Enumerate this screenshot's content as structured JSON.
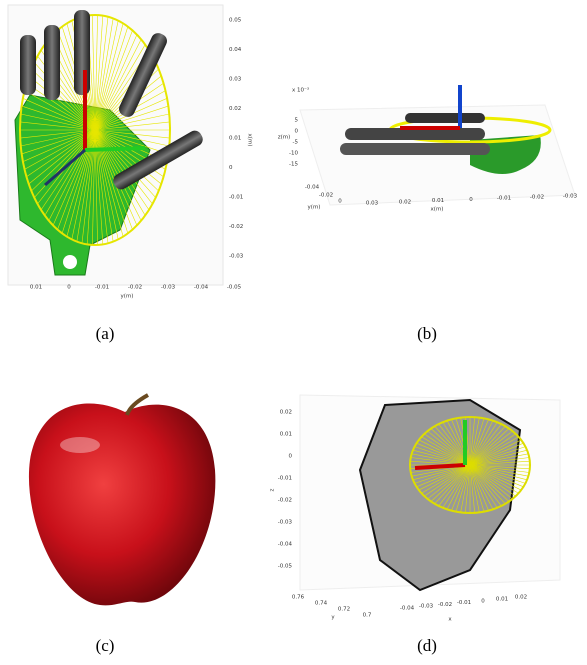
{
  "panels": [
    {
      "label": "(a)",
      "x_axis": {
        "label": "y(m)",
        "ticks": [
          "0.01",
          "0",
          "-0.01",
          "-0.02",
          "-0.03",
          "-0.04",
          "-0.05"
        ]
      },
      "y_axis": {
        "label": "x(m)",
        "ticks": [
          "0.05",
          "0.04",
          "0.03",
          "0.02",
          "0.01",
          "0",
          "-0.01",
          "-0.02",
          "-0.03"
        ]
      }
    },
    {
      "label": "(b)",
      "scale_note": "x 10⁻³",
      "z_axis": {
        "label": "z(m)",
        "ticks": [
          "5",
          "0",
          "-5",
          "-10",
          "-15"
        ]
      },
      "y_axis": {
        "label": "y(m)",
        "ticks": [
          "-0.04",
          "-0.02",
          "0"
        ]
      },
      "x_axis": {
        "label": "x(m)",
        "ticks": [
          "0.03",
          "0.02",
          "0.01",
          "0",
          "-0.01",
          "-0.02",
          "-0.03"
        ]
      }
    },
    {
      "label": "(c)"
    },
    {
      "label": "(d)",
      "z_axis": {
        "label": "z",
        "ticks": [
          "0.02",
          "0.01",
          "0",
          "-0.01",
          "-0.02",
          "-0.03",
          "-0.04",
          "-0.05"
        ]
      },
      "y_axis": {
        "label": "y",
        "ticks": [
          "0.76",
          "0.74",
          "0.72",
          "0.7"
        ]
      },
      "x_axis": {
        "label": "x",
        "ticks": [
          "-0.04",
          "-0.03",
          "-0.02",
          "-0.01",
          "0",
          "0.01",
          "0.02"
        ]
      }
    }
  ]
}
